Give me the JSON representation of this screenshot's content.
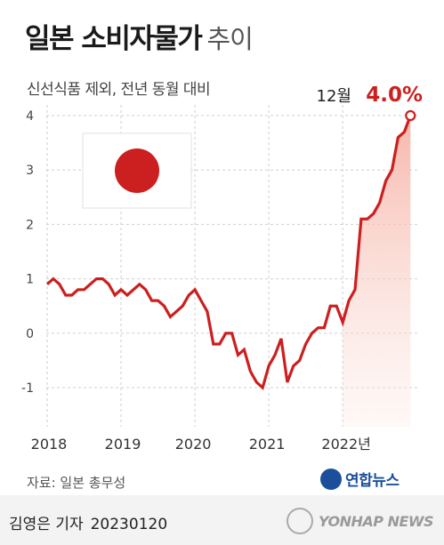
{
  "title": "일본 소비자물가",
  "title_suffix": "추이",
  "subtitle": "신선식품 제외, 전년 동월 대비",
  "annotation": {
    "label": "12월",
    "value": "4.0%"
  },
  "source": "자료: 일본 총무성",
  "logo_text": "연합뉴스",
  "byline": "김영은 기자",
  "byline_date": "20230120",
  "watermark": "YONHAP NEWS",
  "colors": {
    "line": "#cc1f1f",
    "flag_red": "#cc1f1f",
    "area_top": "#f6b3a6"
  },
  "chart_data": {
    "type": "line",
    "title": "일본 소비자물가 추이",
    "subtitle": "신선식품 제외, 전년 동월 대비",
    "ylim": [
      -1.5,
      4
    ],
    "yticks": [
      -1,
      0,
      1,
      2,
      3,
      4
    ],
    "ytick_labels": [
      "-1",
      "0",
      "1",
      "2",
      "3",
      "4"
    ],
    "x_labels": [
      "2018",
      "2019",
      "2020",
      "2021",
      "2022년"
    ],
    "series": [
      {
        "values": [
          0.9,
          1.0,
          0.9,
          0.7,
          0.7,
          0.8,
          0.8,
          0.9,
          1.0,
          1.0,
          0.9,
          0.7,
          0.8,
          0.7,
          0.8,
          0.9,
          0.8,
          0.6,
          0.6,
          0.5,
          0.3,
          0.4,
          0.5,
          0.7,
          0.8,
          0.6,
          0.4,
          -0.2,
          -0.2,
          0.0,
          0.0,
          -0.4,
          -0.3,
          -0.7,
          -0.9,
          -1.0,
          -0.6,
          -0.4,
          -0.1,
          -0.9,
          -0.6,
          -0.5,
          -0.2,
          0.0,
          0.1,
          0.1,
          0.5,
          0.5,
          0.2,
          0.6,
          0.8,
          2.1,
          2.1,
          2.2,
          2.4,
          2.8,
          3.0,
          3.6,
          3.7,
          4.0
        ]
      }
    ]
  }
}
